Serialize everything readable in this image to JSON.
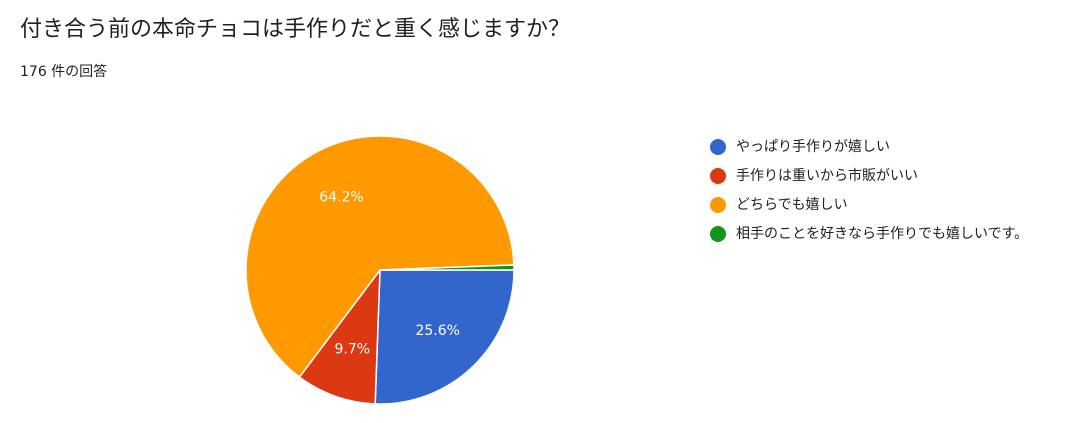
{
  "header": {
    "title": "付き合う前の本命チョコは手作りだと重く感じますか？",
    "response_count": "176 件の回答"
  },
  "chart_data": {
    "type": "pie",
    "categories": [
      "やっぱり手作りが嬉しい",
      "手作りは重いから市販がいい",
      "どちらでも嬉しい",
      "相手のことを好きなら手作りでも嬉しいです。"
    ],
    "values": [
      25.6,
      9.7,
      64.2,
      0.6
    ],
    "labels": [
      "25.6%",
      "9.7%",
      "64.2%",
      ""
    ],
    "colors": [
      "#3366cc",
      "#dc3912",
      "#ff9900",
      "#109618"
    ],
    "legend_position": "right"
  },
  "legend": {
    "items": [
      {
        "label": "やっぱり手作りが嬉しい",
        "color": "#3366cc"
      },
      {
        "label": "手作りは重いから市販がいい",
        "color": "#dc3912"
      },
      {
        "label": "どちらでも嬉しい",
        "color": "#ff9900"
      },
      {
        "label": "相手のことを好きなら手作りでも嬉しいです。",
        "color": "#109618"
      }
    ]
  }
}
